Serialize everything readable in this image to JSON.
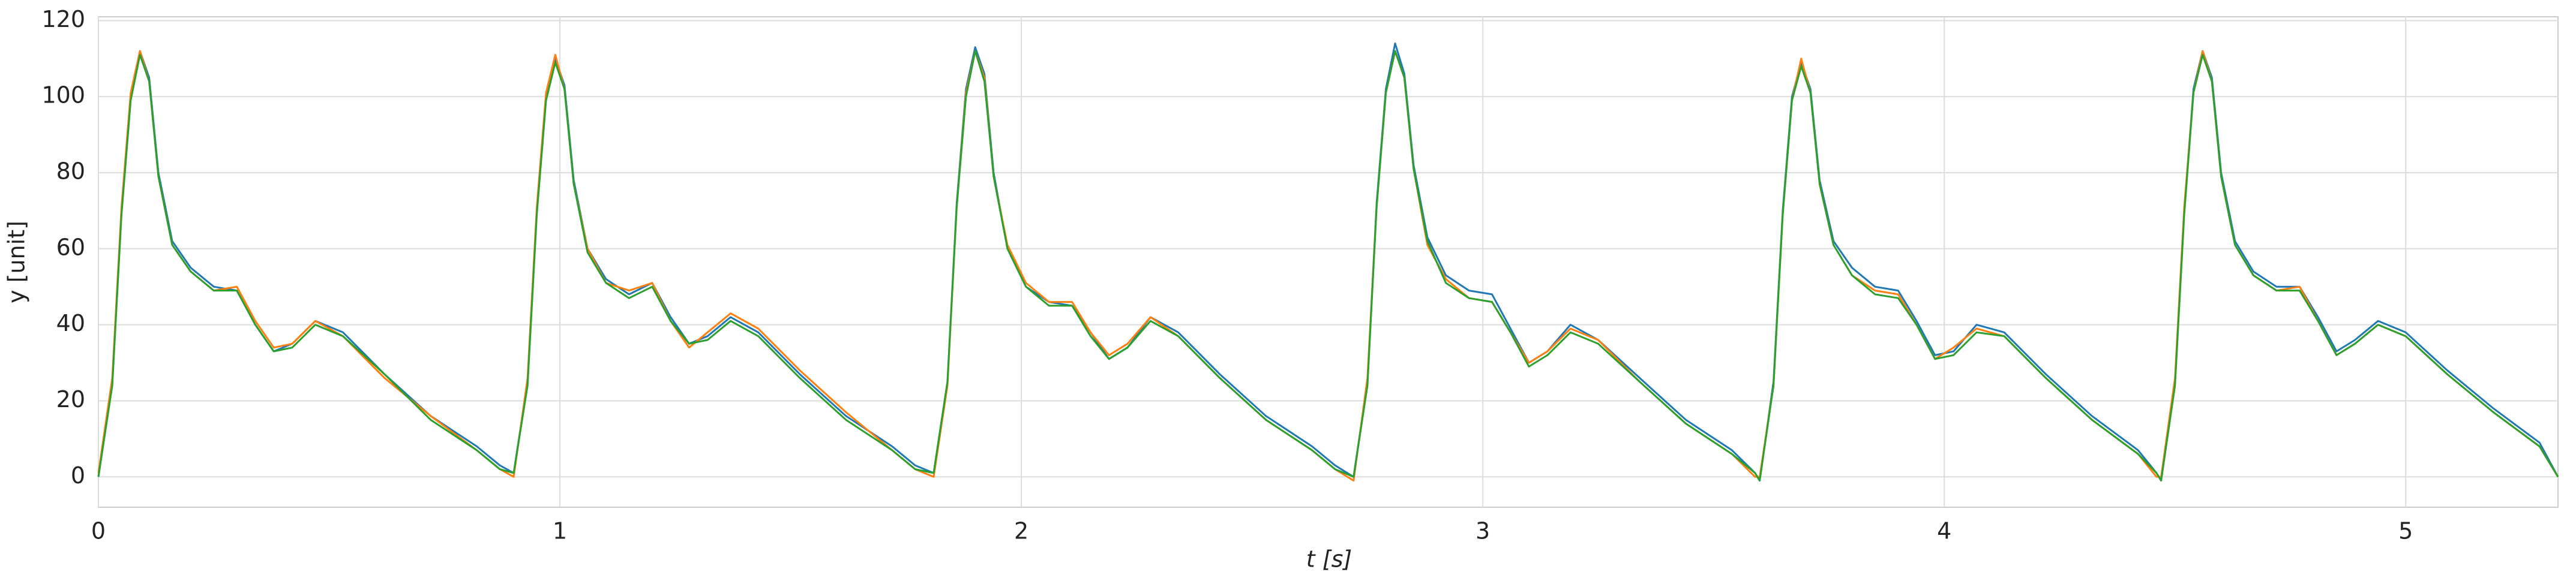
{
  "chart_data": {
    "type": "line",
    "xlabel": "t [s]",
    "ylabel": "y [unit]",
    "xlim": [
      0,
      5.33
    ],
    "ylim": [
      -8,
      121
    ],
    "xticks": [
      0,
      1,
      2,
      3,
      4,
      5
    ],
    "yticks": [
      0,
      20,
      40,
      60,
      80,
      100,
      120
    ],
    "grid": true,
    "x": [
      0,
      0.03,
      0.05,
      0.07,
      0.09,
      0.11,
      0.13,
      0.16,
      0.2,
      0.25,
      0.3,
      0.34,
      0.38,
      0.42,
      0.47,
      0.53,
      0.62,
      0.72,
      0.82,
      0.87,
      0.9,
      0.93,
      0.95,
      0.97,
      0.99,
      1.01,
      1.03,
      1.06,
      1.1,
      1.15,
      1.2,
      1.24,
      1.28,
      1.32,
      1.37,
      1.43,
      1.52,
      1.62,
      1.72,
      1.77,
      1.81,
      1.84,
      1.86,
      1.88,
      1.9,
      1.92,
      1.94,
      1.97,
      2.01,
      2.06,
      2.11,
      2.15,
      2.19,
      2.23,
      2.28,
      2.34,
      2.43,
      2.53,
      2.63,
      2.68,
      2.72,
      2.75,
      2.77,
      2.79,
      2.81,
      2.83,
      2.85,
      2.88,
      2.92,
      2.97,
      3.02,
      3.06,
      3.1,
      3.14,
      3.19,
      3.25,
      3.34,
      3.44,
      3.54,
      3.59,
      3.6,
      3.63,
      3.65,
      3.67,
      3.69,
      3.71,
      3.73,
      3.76,
      3.8,
      3.85,
      3.9,
      3.94,
      3.98,
      4.02,
      4.07,
      4.13,
      4.22,
      4.32,
      4.42,
      4.46,
      4.47,
      4.5,
      4.52,
      4.54,
      4.56,
      4.58,
      4.6,
      4.63,
      4.67,
      4.72,
      4.77,
      4.81,
      4.85,
      4.89,
      4.94,
      5.0,
      5.09,
      5.19,
      5.29,
      5.33
    ],
    "series": [
      {
        "color": "#1f77b4",
        "values": [
          0,
          25,
          70,
          100,
          112,
          105,
          80,
          62,
          55,
          50,
          49,
          40,
          33,
          35,
          41,
          38,
          27,
          16,
          8,
          3,
          1,
          25,
          70,
          100,
          110,
          103,
          78,
          60,
          52,
          48,
          51,
          42,
          35,
          37,
          42,
          38,
          27,
          16,
          8,
          3,
          1,
          25,
          72,
          102,
          113,
          106,
          80,
          60,
          50,
          46,
          45,
          38,
          31,
          34,
          42,
          38,
          27,
          16,
          8,
          3,
          0,
          25,
          72,
          102,
          114,
          106,
          82,
          63,
          53,
          49,
          48,
          39,
          30,
          33,
          40,
          36,
          26,
          15,
          7,
          1,
          -1,
          25,
          70,
          100,
          109,
          102,
          78,
          62,
          55,
          50,
          49,
          41,
          32,
          33,
          40,
          38,
          27,
          16,
          7,
          1,
          -1,
          25,
          70,
          102,
          112,
          105,
          80,
          62,
          54,
          50,
          50,
          42,
          33,
          36,
          41,
          38,
          28,
          18,
          9,
          0
        ]
      },
      {
        "color": "#ff7f0e",
        "values": [
          1,
          26,
          71,
          101,
          112,
          104,
          79,
          61,
          54,
          49,
          50,
          41,
          34,
          35,
          41,
          37,
          26,
          16,
          7,
          2,
          0,
          26,
          71,
          101,
          111,
          102,
          77,
          60,
          51,
          49,
          51,
          41,
          34,
          38,
          43,
          39,
          28,
          17,
          7,
          2,
          0,
          24,
          71,
          101,
          112,
          105,
          79,
          61,
          51,
          46,
          46,
          38,
          32,
          35,
          42,
          37,
          26,
          15,
          7,
          2,
          -1,
          26,
          71,
          101,
          112,
          105,
          81,
          61,
          52,
          47,
          46,
          38,
          30,
          33,
          39,
          36,
          25,
          14,
          6,
          0,
          0,
          24,
          69,
          99,
          110,
          101,
          77,
          61,
          53,
          49,
          48,
          40,
          31,
          34,
          39,
          37,
          26,
          15,
          6,
          0,
          0,
          26,
          71,
          101,
          112,
          104,
          79,
          61,
          53,
          49,
          50,
          41,
          32,
          35,
          40,
          37,
          27,
          17,
          8,
          0
        ]
      },
      {
        "color": "#2ca02c",
        "values": [
          0,
          24,
          69,
          99,
          111,
          104,
          79,
          61,
          54,
          49,
          49,
          40,
          33,
          34,
          40,
          37,
          27,
          15,
          7,
          2,
          1,
          24,
          69,
          99,
          109,
          102,
          77,
          59,
          51,
          47,
          50,
          41,
          35,
          36,
          41,
          37,
          26,
          15,
          7,
          2,
          1,
          25,
          71,
          100,
          112,
          104,
          79,
          60,
          50,
          45,
          45,
          37,
          31,
          34,
          41,
          37,
          26,
          15,
          7,
          2,
          0,
          24,
          71,
          101,
          112,
          105,
          81,
          62,
          51,
          47,
          46,
          38,
          29,
          32,
          38,
          35,
          25,
          14,
          6,
          1,
          -1,
          24,
          69,
          99,
          108,
          101,
          77,
          61,
          53,
          48,
          47,
          40,
          31,
          32,
          38,
          37,
          26,
          15,
          6,
          1,
          -1,
          24,
          69,
          101,
          111,
          104,
          79,
          61,
          53,
          49,
          49,
          41,
          32,
          35,
          40,
          37,
          27,
          17,
          8,
          0
        ]
      }
    ]
  }
}
